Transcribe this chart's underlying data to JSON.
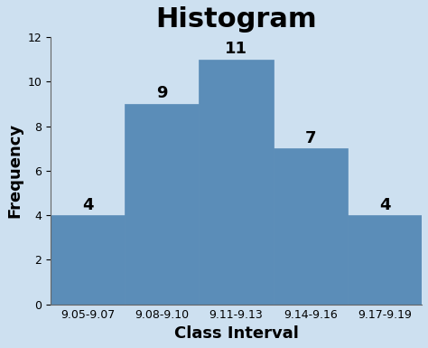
{
  "title": "Histogram",
  "xlabel": "Class Interval",
  "ylabel": "Frequency",
  "categories": [
    "9.05-9.07",
    "9.08-9.10",
    "9.11-9.13",
    "9.14-9.16",
    "9.17-9.19"
  ],
  "values": [
    4,
    9,
    11,
    7,
    4
  ],
  "bar_color": "#5b8db8",
  "bar_edgecolor": "#5b8db8",
  "ylim": [
    0,
    12
  ],
  "yticks": [
    0,
    2,
    4,
    6,
    8,
    10,
    12
  ],
  "background_color": "#cde0f0",
  "title_fontsize": 22,
  "title_fontweight": "bold",
  "axis_label_fontsize": 13,
  "axis_label_fontweight": "bold",
  "tick_fontsize": 9,
  "bar_label_fontsize": 13,
  "bar_label_fontweight": "bold"
}
